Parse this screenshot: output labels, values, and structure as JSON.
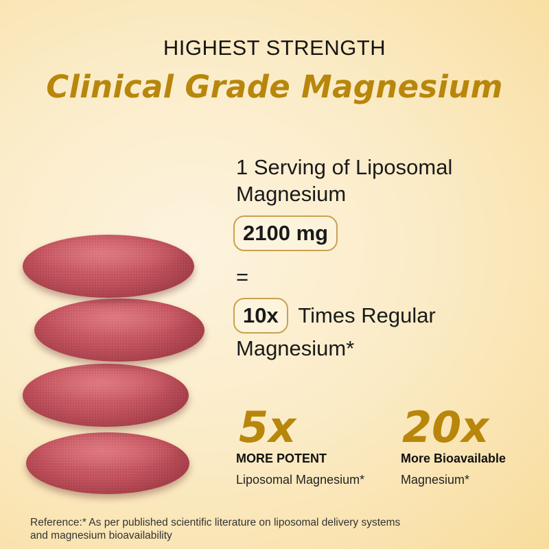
{
  "header": {
    "kicker": "HIGHEST STRENGTH",
    "title": "Clinical Grade Magnesium"
  },
  "serving": {
    "line1": "1 Serving of Liposomal",
    "line2": "Magnesium",
    "amount": "2100 mg",
    "equals": "=",
    "multiplier": "10x",
    "comparison_line1": "Times Regular",
    "comparison_line2": "Magnesium*"
  },
  "stats": [
    {
      "value": "5x",
      "label": "MORE POTENT",
      "desc": "Liposomal Magnesium*"
    },
    {
      "value": "20x",
      "label": "More Bioavailable",
      "desc": "Magnesium*"
    }
  ],
  "reference": {
    "line1": "Reference:* As per published scientific literature on liposomal delivery systems",
    "line2": "and magnesium bioavailability"
  },
  "colors": {
    "accent": "#b8860b",
    "pill_border": "#c9a050",
    "tablet": "#c55560"
  }
}
